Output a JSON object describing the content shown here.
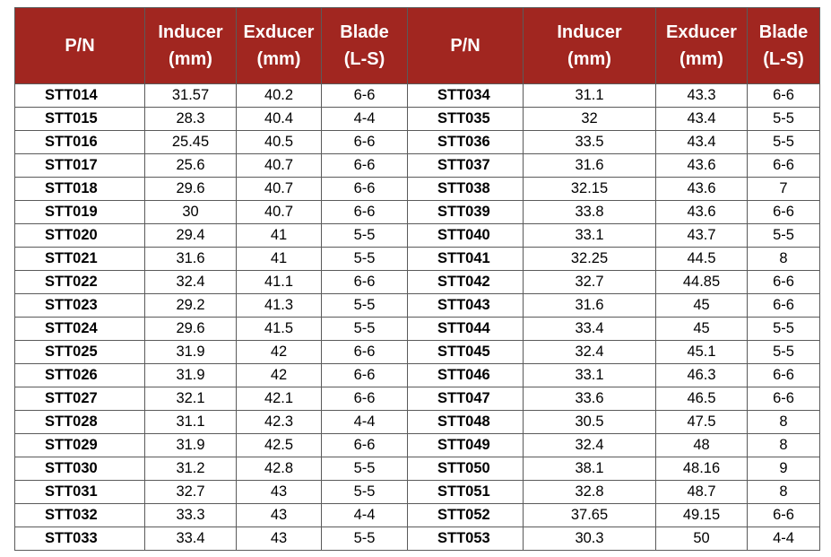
{
  "headers": {
    "pn": "P/N",
    "inducer_line1": "Inducer",
    "inducer_line2": "(mm)",
    "exducer_line1": "Exducer",
    "exducer_line2": "(mm)",
    "blade_line1": "Blade",
    "blade_line2": "(L-S)"
  },
  "colors": {
    "header_background": "#a12620",
    "header_text": "#ffffff",
    "grid_lines": "#5a5a5a"
  },
  "rows": [
    {
      "left": {
        "pn": "STT014",
        "inducer": "31.57",
        "exducer": "40.2",
        "blade": "6-6"
      },
      "right": {
        "pn": "STT034",
        "inducer": "31.1",
        "exducer": "43.3",
        "blade": "6-6"
      }
    },
    {
      "left": {
        "pn": "STT015",
        "inducer": "28.3",
        "exducer": "40.4",
        "blade": "4-4"
      },
      "right": {
        "pn": "STT035",
        "inducer": "32",
        "exducer": "43.4",
        "blade": "5-5"
      }
    },
    {
      "left": {
        "pn": "STT016",
        "inducer": "25.45",
        "exducer": "40.5",
        "blade": "6-6"
      },
      "right": {
        "pn": "STT036",
        "inducer": "33.5",
        "exducer": "43.4",
        "blade": "5-5"
      }
    },
    {
      "left": {
        "pn": "STT017",
        "inducer": "25.6",
        "exducer": "40.7",
        "blade": "6-6"
      },
      "right": {
        "pn": "STT037",
        "inducer": "31.6",
        "exducer": "43.6",
        "blade": "6-6"
      }
    },
    {
      "left": {
        "pn": "STT018",
        "inducer": "29.6",
        "exducer": "40.7",
        "blade": "6-6"
      },
      "right": {
        "pn": "STT038",
        "inducer": "32.15",
        "exducer": "43.6",
        "blade": "7"
      }
    },
    {
      "left": {
        "pn": "STT019",
        "inducer": "30",
        "exducer": "40.7",
        "blade": "6-6"
      },
      "right": {
        "pn": "STT039",
        "inducer": "33.8",
        "exducer": "43.6",
        "blade": "6-6"
      }
    },
    {
      "left": {
        "pn": "STT020",
        "inducer": "29.4",
        "exducer": "41",
        "blade": "5-5"
      },
      "right": {
        "pn": "STT040",
        "inducer": "33.1",
        "exducer": "43.7",
        "blade": "5-5"
      }
    },
    {
      "left": {
        "pn": "STT021",
        "inducer": "31.6",
        "exducer": "41",
        "blade": "5-5"
      },
      "right": {
        "pn": "STT041",
        "inducer": "32.25",
        "exducer": "44.5",
        "blade": "8"
      }
    },
    {
      "left": {
        "pn": "STT022",
        "inducer": "32.4",
        "exducer": "41.1",
        "blade": "6-6"
      },
      "right": {
        "pn": "STT042",
        "inducer": "32.7",
        "exducer": "44.85",
        "blade": "6-6"
      }
    },
    {
      "left": {
        "pn": "STT023",
        "inducer": "29.2",
        "exducer": "41.3",
        "blade": "5-5"
      },
      "right": {
        "pn": "STT043",
        "inducer": "31.6",
        "exducer": "45",
        "blade": "6-6"
      }
    },
    {
      "left": {
        "pn": "STT024",
        "inducer": "29.6",
        "exducer": "41.5",
        "blade": "5-5"
      },
      "right": {
        "pn": "STT044",
        "inducer": "33.4",
        "exducer": "45",
        "blade": "5-5"
      }
    },
    {
      "left": {
        "pn": "STT025",
        "inducer": "31.9",
        "exducer": "42",
        "blade": "6-6"
      },
      "right": {
        "pn": "STT045",
        "inducer": "32.4",
        "exducer": "45.1",
        "blade": "5-5"
      }
    },
    {
      "left": {
        "pn": "STT026",
        "inducer": "31.9",
        "exducer": "42",
        "blade": "6-6"
      },
      "right": {
        "pn": "STT046",
        "inducer": "33.1",
        "exducer": "46.3",
        "blade": "6-6"
      }
    },
    {
      "left": {
        "pn": "STT027",
        "inducer": "32.1",
        "exducer": "42.1",
        "blade": "6-6"
      },
      "right": {
        "pn": "STT047",
        "inducer": "33.6",
        "exducer": "46.5",
        "blade": "6-6"
      }
    },
    {
      "left": {
        "pn": "STT028",
        "inducer": "31.1",
        "exducer": "42.3",
        "blade": "4-4"
      },
      "right": {
        "pn": "STT048",
        "inducer": "30.5",
        "exducer": "47.5",
        "blade": "8"
      }
    },
    {
      "left": {
        "pn": "STT029",
        "inducer": "31.9",
        "exducer": "42.5",
        "blade": "6-6"
      },
      "right": {
        "pn": "STT049",
        "inducer": "32.4",
        "exducer": "48",
        "blade": "8"
      }
    },
    {
      "left": {
        "pn": "STT030",
        "inducer": "31.2",
        "exducer": "42.8",
        "blade": "5-5"
      },
      "right": {
        "pn": "STT050",
        "inducer": "38.1",
        "exducer": "48.16",
        "blade": "9"
      }
    },
    {
      "left": {
        "pn": "STT031",
        "inducer": "32.7",
        "exducer": "43",
        "blade": "5-5"
      },
      "right": {
        "pn": "STT051",
        "inducer": "32.8",
        "exducer": "48.7",
        "blade": "8"
      }
    },
    {
      "left": {
        "pn": "STT032",
        "inducer": "33.3",
        "exducer": "43",
        "blade": "4-4"
      },
      "right": {
        "pn": "STT052",
        "inducer": "37.65",
        "exducer": "49.15",
        "blade": "6-6"
      }
    },
    {
      "left": {
        "pn": "STT033",
        "inducer": "33.4",
        "exducer": "43",
        "blade": "5-5"
      },
      "right": {
        "pn": "STT053",
        "inducer": "30.3",
        "exducer": "50",
        "blade": "4-4"
      }
    }
  ]
}
